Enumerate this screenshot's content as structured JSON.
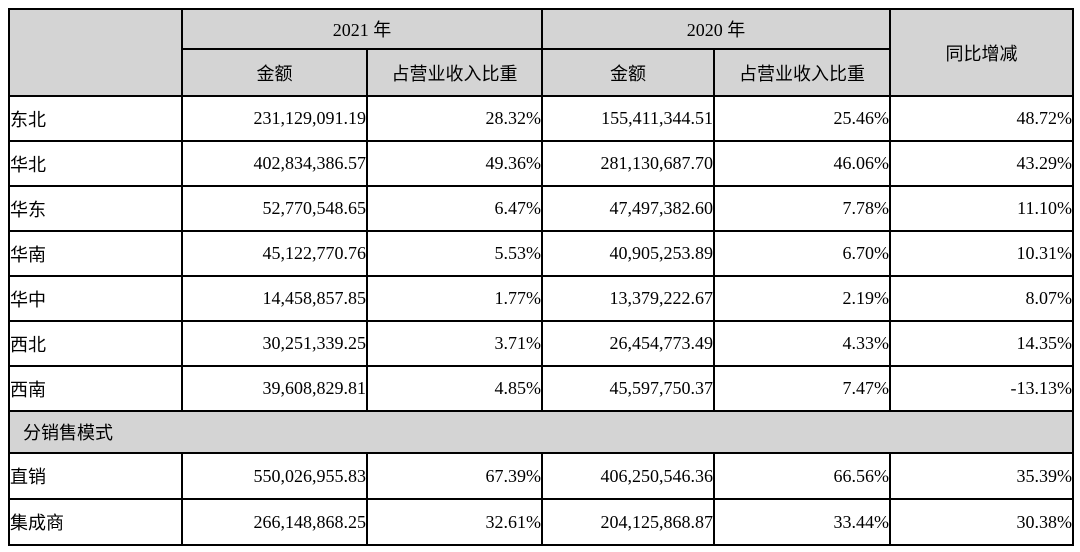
{
  "table": {
    "header": {
      "corner": "",
      "year_2021": "2021 年",
      "year_2020": "2020 年",
      "yoy": "同比增减",
      "amount": "金额",
      "ratio": "占营业收入比重"
    },
    "section_label": "分销售模式",
    "region_rows": [
      {
        "label": "东北",
        "amount_2021": "231,129,091.19",
        "ratio_2021": "28.32%",
        "amount_2020": "155,411,344.51",
        "ratio_2020": "25.46%",
        "yoy": "48.72%"
      },
      {
        "label": "华北",
        "amount_2021": "402,834,386.57",
        "ratio_2021": "49.36%",
        "amount_2020": "281,130,687.70",
        "ratio_2020": "46.06%",
        "yoy": "43.29%"
      },
      {
        "label": "华东",
        "amount_2021": "52,770,548.65",
        "ratio_2021": "6.47%",
        "amount_2020": "47,497,382.60",
        "ratio_2020": "7.78%",
        "yoy": "11.10%"
      },
      {
        "label": "华南",
        "amount_2021": "45,122,770.76",
        "ratio_2021": "5.53%",
        "amount_2020": "40,905,253.89",
        "ratio_2020": "6.70%",
        "yoy": "10.31%"
      },
      {
        "label": "华中",
        "amount_2021": "14,458,857.85",
        "ratio_2021": "1.77%",
        "amount_2020": "13,379,222.67",
        "ratio_2020": "2.19%",
        "yoy": "8.07%"
      },
      {
        "label": "西北",
        "amount_2021": "30,251,339.25",
        "ratio_2021": "3.71%",
        "amount_2020": "26,454,773.49",
        "ratio_2020": "4.33%",
        "yoy": "14.35%"
      },
      {
        "label": "西南",
        "amount_2021": "39,608,829.81",
        "ratio_2021": "4.85%",
        "amount_2020": "45,597,750.37",
        "ratio_2020": "7.47%",
        "yoy": "-13.13%"
      }
    ],
    "mode_rows": [
      {
        "label": "直销",
        "amount_2021": "550,026,955.83",
        "ratio_2021": "67.39%",
        "amount_2020": "406,250,546.36",
        "ratio_2020": "66.56%",
        "yoy": "35.39%"
      },
      {
        "label": "集成商",
        "amount_2021": "266,148,868.25",
        "ratio_2021": "32.61%",
        "amount_2020": "204,125,868.87",
        "ratio_2020": "33.44%",
        "yoy": "30.38%"
      }
    ],
    "colors": {
      "header_bg": "#d4d4d4",
      "border": "#000000",
      "background": "#ffffff",
      "text": "#000000"
    }
  }
}
